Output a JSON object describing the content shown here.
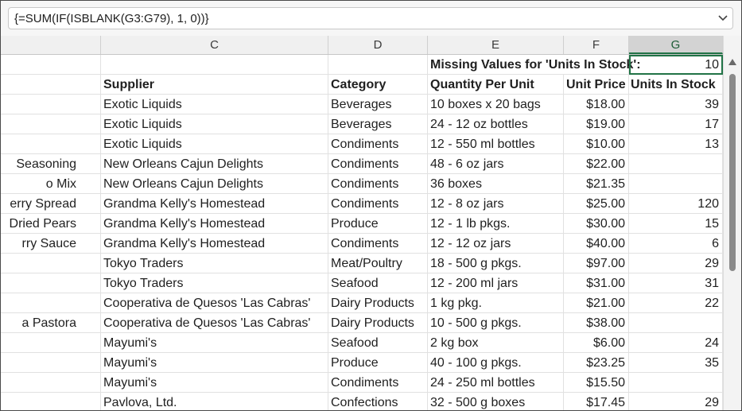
{
  "formula_bar": {
    "text": "{=SUM(IF(ISBLANK(G3:G79), 1, 0))}"
  },
  "column_headers": [
    "C",
    "D",
    "E",
    "F",
    "G"
  ],
  "selected_column": "G",
  "title_row": {
    "label": "Missing Values for 'Units In Stock':",
    "value": "10"
  },
  "header_row": {
    "supplier": "Supplier",
    "category": "Category",
    "qpu": "Quantity Per Unit",
    "price": "Unit Price",
    "stock": "Units In Stock"
  },
  "rows": [
    {
      "b": "",
      "c": "Exotic Liquids",
      "d": "Beverages",
      "e": "10 boxes x 20 bags",
      "f": "$18.00",
      "g": "39"
    },
    {
      "b": "",
      "c": "Exotic Liquids",
      "d": "Beverages",
      "e": "24 - 12 oz bottles",
      "f": "$19.00",
      "g": "17"
    },
    {
      "b": "",
      "c": "Exotic Liquids",
      "d": "Condiments",
      "e": "12 - 550 ml bottles",
      "f": "$10.00",
      "g": "13"
    },
    {
      "b": "Seasoning",
      "c": "New Orleans Cajun Delights",
      "d": "Condiments",
      "e": "48 - 6 oz jars",
      "f": "$22.00",
      "g": ""
    },
    {
      "b": "o Mix",
      "c": "New Orleans Cajun Delights",
      "d": "Condiments",
      "e": "36 boxes",
      "f": "$21.35",
      "g": ""
    },
    {
      "b": "erry Spread",
      "c": "Grandma Kelly's Homestead",
      "d": "Condiments",
      "e": "12 - 8 oz jars",
      "f": "$25.00",
      "g": "120"
    },
    {
      "b": "Dried Pears",
      "c": "Grandma Kelly's Homestead",
      "d": "Produce",
      "e": "12 - 1 lb pkgs.",
      "f": "$30.00",
      "g": "15"
    },
    {
      "b": "rry Sauce",
      "c": "Grandma Kelly's Homestead",
      "d": "Condiments",
      "e": "12 - 12 oz jars",
      "f": "$40.00",
      "g": "6"
    },
    {
      "b": "",
      "c": "Tokyo Traders",
      "d": "Meat/Poultry",
      "e": "18 - 500 g pkgs.",
      "f": "$97.00",
      "g": "29"
    },
    {
      "b": "",
      "c": "Tokyo Traders",
      "d": "Seafood",
      "e": "12 - 200 ml jars",
      "f": "$31.00",
      "g": "31"
    },
    {
      "b": "",
      "c": "Cooperativa de Quesos 'Las Cabras'",
      "d": "Dairy Products",
      "e": "1 kg pkg.",
      "f": "$21.00",
      "g": "22"
    },
    {
      "b": "a Pastora",
      "c": "Cooperativa de Quesos 'Las Cabras'",
      "d": "Dairy Products",
      "e": "10 - 500 g pkgs.",
      "f": "$38.00",
      "g": ""
    },
    {
      "b": "",
      "c": "Mayumi's",
      "d": "Seafood",
      "e": "2 kg box",
      "f": "$6.00",
      "g": "24"
    },
    {
      "b": "",
      "c": "Mayumi's",
      "d": "Produce",
      "e": "40 - 100 g pkgs.",
      "f": "$23.25",
      "g": "35"
    },
    {
      "b": "",
      "c": "Mayumi's",
      "d": "Condiments",
      "e": "24 - 250 ml bottles",
      "f": "$15.50",
      "g": ""
    },
    {
      "b": "",
      "c": "Pavlova, Ltd.",
      "d": "Confections",
      "e": "32 - 500 g boxes",
      "f": "$17.45",
      "g": "29"
    }
  ]
}
